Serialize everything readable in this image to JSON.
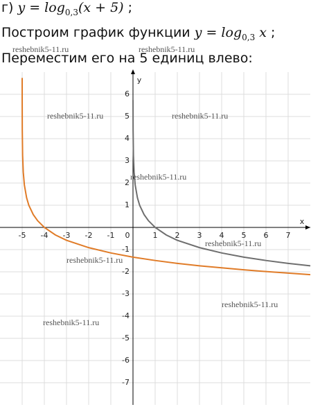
{
  "task": {
    "prefix": "г)",
    "lhs": "y = log",
    "base": "0,3",
    "arg": "(x + 5)",
    "end": ";"
  },
  "step1": {
    "text": "Построим график функции",
    "lhs": "y = log",
    "base": "0,3",
    "arg": "x",
    "end": ";"
  },
  "step2": "Переместим его на 5 единиц влево:",
  "watermarks": [
    "reshebnik5-11.ru",
    "reshebnik5-11.ru",
    "reshebnik5-11.ru",
    "reshebnik5-11.ru",
    "reshebnik5-11.ru",
    "reshebnik5-11.ru",
    "reshebnik5-11.ru",
    "reshebnik5-11.ru",
    "reshebnik5-11.ru"
  ],
  "chart_data": {
    "type": "line",
    "x_label": "x",
    "y_label": "y",
    "xlim": [
      -6,
      8
    ],
    "ylim": [
      -8,
      7
    ],
    "xticks": [
      -5,
      -4,
      -3,
      -2,
      -1,
      0,
      1,
      2,
      3,
      4,
      5,
      6,
      7
    ],
    "yticks": [
      -7,
      -6,
      -5,
      -4,
      -3,
      -2,
      -1,
      1,
      2,
      3,
      4,
      5,
      6
    ],
    "grid": true,
    "series": [
      {
        "color": "#6e6e6e",
        "x": [
          0.001,
          0.005,
          0.02,
          0.05,
          0.1,
          0.2,
          0.3,
          0.5,
          0.7,
          1,
          1.5,
          2,
          3,
          4,
          5,
          6,
          7,
          8
        ],
        "values": [
          5.74,
          4.4,
          3.25,
          2.49,
          1.91,
          1.34,
          1,
          0.58,
          0.3,
          0,
          -0.34,
          -0.58,
          -0.91,
          -1.15,
          -1.34,
          -1.49,
          -1.62,
          -1.73
        ]
      },
      {
        "color": "#e07b27",
        "x": [
          -4.9997,
          -4.999,
          -4.995,
          -4.98,
          -4.95,
          -4.9,
          -4.8,
          -4.7,
          -4.5,
          -4.3,
          -4,
          -3.5,
          -3,
          -2,
          -1,
          0,
          1,
          2,
          3,
          4,
          5,
          6,
          7,
          8
        ],
        "values": [
          6.74,
          5.74,
          4.4,
          3.25,
          2.49,
          1.91,
          1.34,
          1,
          0.58,
          0.3,
          0,
          -0.34,
          -0.58,
          -0.91,
          -1.15,
          -1.34,
          -1.49,
          -1.62,
          -1.73,
          -1.82,
          -1.91,
          -1.99,
          -2.06,
          -2.13
        ]
      }
    ]
  }
}
